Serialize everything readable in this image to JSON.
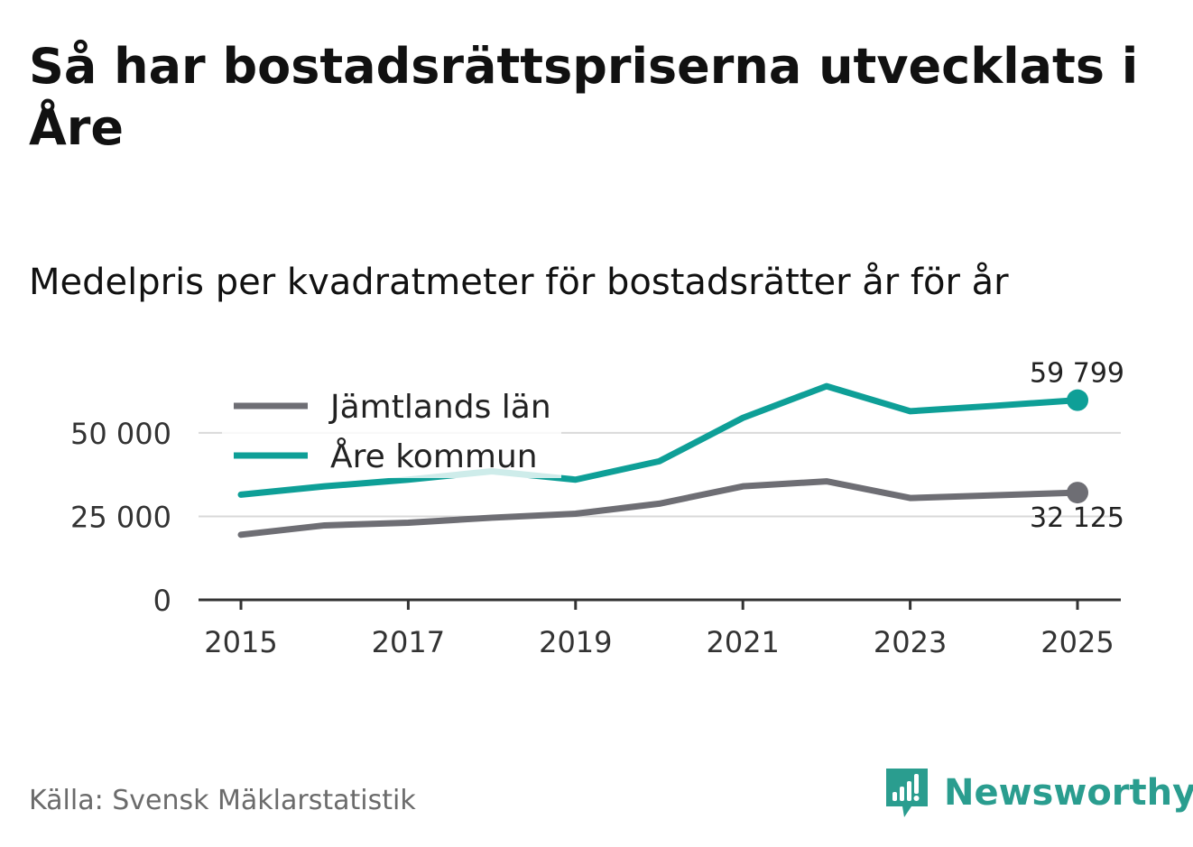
{
  "header": {
    "title": "Så har bostadsrättspriserna utvecklats i Åre",
    "subtitle": "Medelpris per kvadratmeter för bostadsrätter år för år"
  },
  "footer": {
    "source": "Källa: Svensk Mäklarstatistik",
    "brand": "Newsworthy"
  },
  "colors": {
    "are": "#0e9f97",
    "jamtland": "#6e6e74",
    "grid": "#d9d9d9",
    "axis": "#333333",
    "brand": "#2a9d8f"
  },
  "chart_data": {
    "type": "line",
    "title": "Så har bostadsrättspriserna utvecklats i Åre",
    "subtitle": "Medelpris per kvadratmeter för bostadsrätter år för år",
    "xlabel": "",
    "ylabel": "",
    "x": [
      2015,
      2016,
      2017,
      2018,
      2019,
      2020,
      2021,
      2022,
      2023,
      2024,
      2025
    ],
    "xticks": [
      "2015",
      "2017",
      "2019",
      "2021",
      "2023",
      "2025"
    ],
    "yticks": [
      "0",
      "25 000",
      "50 000"
    ],
    "ylim": [
      0,
      67000
    ],
    "grid": true,
    "legend_position": "top-left",
    "series": [
      {
        "name": "Jämtlands län",
        "values": [
          19500,
          22300,
          23100,
          24600,
          25800,
          28800,
          34000,
          35500,
          30500,
          31300,
          32125
        ],
        "end_label": "32 125"
      },
      {
        "name": "Åre kommun",
        "values": [
          31500,
          34000,
          36000,
          38500,
          36000,
          41500,
          54500,
          64000,
          56500,
          58100,
          59799
        ],
        "end_label": "59 799"
      }
    ]
  }
}
